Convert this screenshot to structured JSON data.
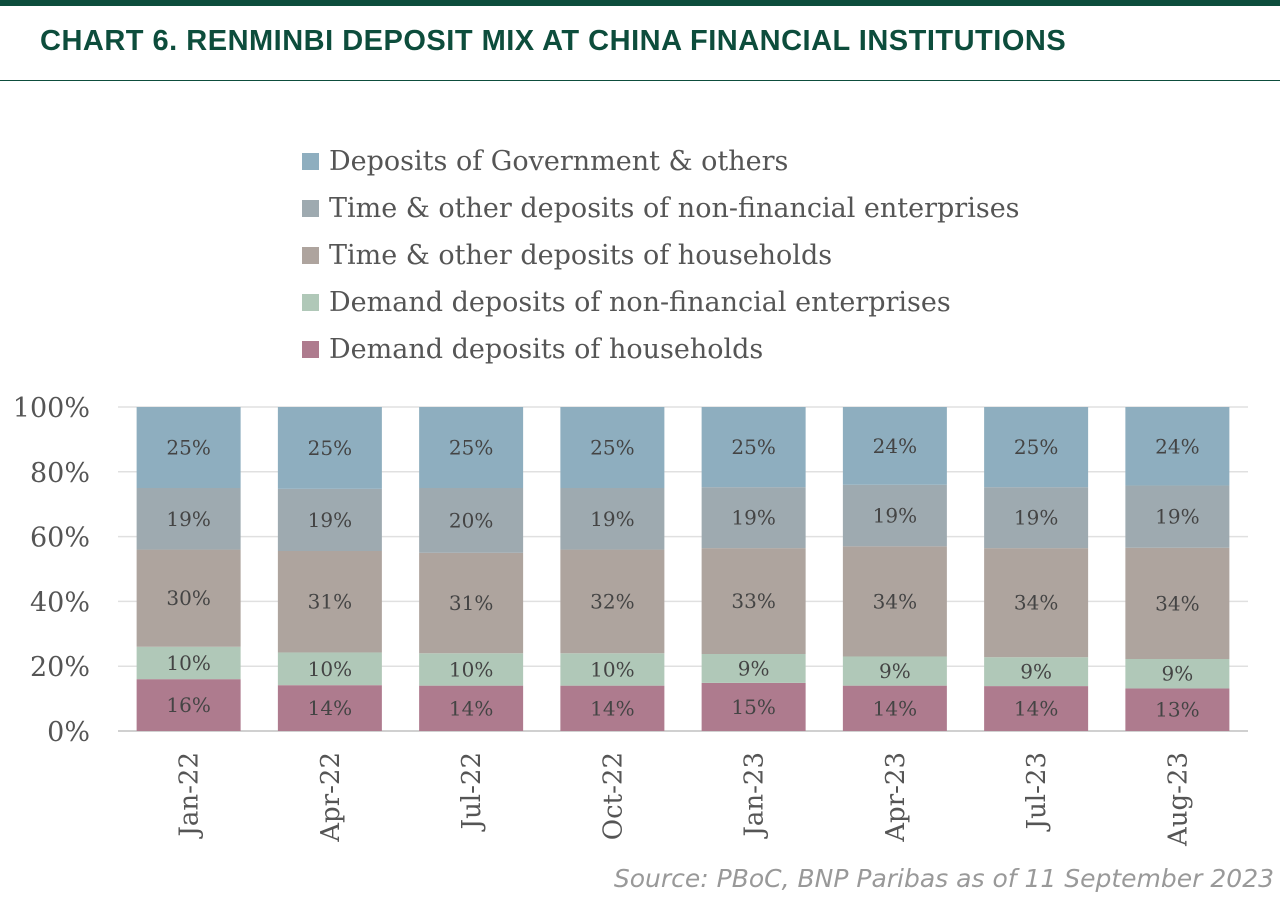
{
  "title": "CHART 6. RENMINBI DEPOSIT MIX AT CHINA FINANCIAL INSTITUTIONS",
  "source": "Source: PBoC, BNP Paribas as of 11 September 2023",
  "chart_data": {
    "type": "bar",
    "stacked": true,
    "title": "CHART 6. RENMINBI DEPOSIT MIX AT CHINA FINANCIAL INSTITUTIONS",
    "xlabel": "",
    "ylabel": "",
    "ylim": [
      0,
      100
    ],
    "yticks": [
      "0%",
      "20%",
      "40%",
      "60%",
      "80%",
      "100%"
    ],
    "grid": true,
    "legend_placement": "top",
    "categories": [
      "Jan-22",
      "Apr-22",
      "Jul-22",
      "Oct-22",
      "Jan-23",
      "Apr-23",
      "Jul-23",
      "Aug-23"
    ],
    "series": [
      {
        "name": "Demand deposits of households",
        "color": "#ae7b8e",
        "values": [
          16,
          14,
          14,
          14,
          15,
          14,
          14,
          13
        ]
      },
      {
        "name": "Demand deposits of non-financial enterprises",
        "color": "#b0c8b8",
        "values": [
          10,
          10,
          10,
          10,
          9,
          9,
          9,
          9
        ]
      },
      {
        "name": "Time & other deposits of households",
        "color": "#aea49e",
        "values": [
          30,
          31,
          31,
          32,
          33,
          34,
          34,
          34
        ]
      },
      {
        "name": "Time & other deposits of non-financial enterprises",
        "color": "#9eaab0",
        "values": [
          19,
          19,
          20,
          19,
          19,
          19,
          19,
          19
        ]
      },
      {
        "name": "Deposits of Government & others",
        "color": "#8eaebf",
        "values": [
          25,
          25,
          25,
          25,
          25,
          24,
          25,
          24
        ]
      }
    ]
  }
}
